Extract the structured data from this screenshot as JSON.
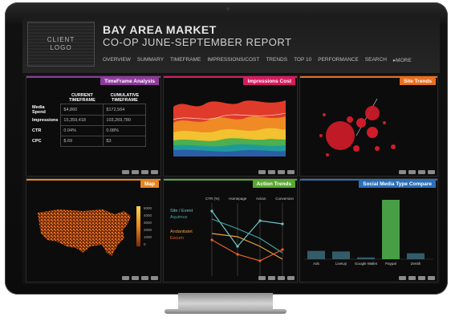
{
  "header": {
    "logo_line1": "CLIENT",
    "logo_line2": "LOGO",
    "title_line1": "BAY AREA MARKET",
    "title_line2": "CO-OP JUNE-SEPTEMBER REPORT",
    "nav": [
      "OVERVIEW",
      "SUMMARY",
      "TIMEFRAME",
      "IMPRESSIONS/COST",
      "TRENDS",
      "TOP 10",
      "PERFORMANCE",
      "SEARCH",
      "▸MORE"
    ]
  },
  "panels": {
    "timeframe": {
      "title": "TimeFrame Analysis",
      "color": "#8e3a9c",
      "col1": "CURRENT TIMEFRAME",
      "col2": "CUMULATIVE TIMEFRAME",
      "rows": [
        {
          "label": "Media Spend",
          "current": "$4,860",
          "cumulative": "$172,564"
        },
        {
          "label": "Impressions",
          "current": "15,359,418",
          "cumulative": "103,269,780"
        },
        {
          "label": "CTR",
          "current": "0.04%",
          "cumulative": "0.08%"
        },
        {
          "label": "CPC",
          "current": "$.69",
          "cumulative": "$3"
        }
      ]
    },
    "impressions": {
      "title": "Impressions Cost",
      "color": "#d81b5e"
    },
    "site_trends": {
      "title": "Site Trends",
      "color": "#e96f1c"
    },
    "map": {
      "title": "Map",
      "color": "#e8851f",
      "legend_ticks": [
        "5000",
        "4000",
        "3000",
        "2000",
        "1000",
        "0"
      ]
    },
    "action_trends": {
      "title": "Action Trends",
      "color": "#5aa832",
      "columns": [
        "CTR (%)",
        "Homepage",
        "Action",
        "Conversion"
      ],
      "series": [
        {
          "name": "Site / Event",
          "color": "#6fc3c8"
        },
        {
          "name": "Aquimus",
          "color": "#3fa7a0"
        },
        {
          "name": "Andanitatet",
          "color": "#e8a23a"
        },
        {
          "name": "Escum",
          "color": "#e8612c"
        }
      ]
    },
    "social": {
      "title": "Social Media Type Compare",
      "color": "#2b6fb8",
      "chart_data": {
        "type": "bar",
        "categories": [
          "Ads",
          "LiveUp",
          "Google Wallet",
          "Paypal",
          "Zenith"
        ],
        "values": [
          14,
          13,
          3,
          100,
          10
        ]
      }
    }
  }
}
